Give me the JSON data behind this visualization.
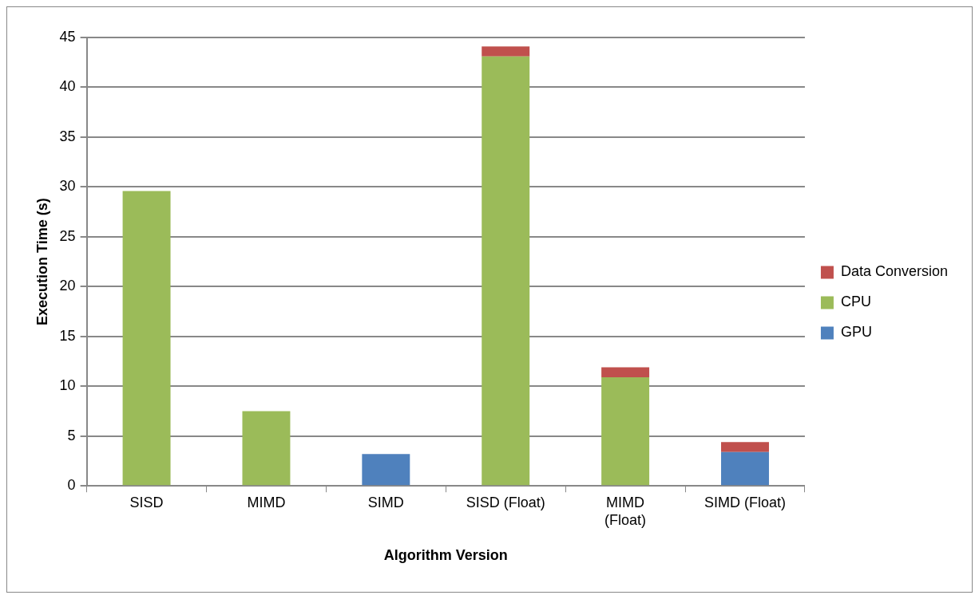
{
  "chart_data": {
    "type": "bar",
    "stacked": true,
    "xlabel": "Algorithm Version",
    "ylabel": "Execution Time (s)",
    "categories": [
      "SISD",
      "MIMD",
      "SIMD",
      "SISD (Float)",
      "MIMD (Float)",
      "SIMD (Float)"
    ],
    "series": [
      {
        "name": "GPU",
        "color": "#4f81bd",
        "values": [
          null,
          null,
          3.2,
          null,
          null,
          3.4
        ]
      },
      {
        "name": "CPU",
        "color": "#9bbb59",
        "values": [
          29.6,
          7.5,
          null,
          43.1,
          10.9,
          null
        ]
      },
      {
        "name": "Data Conversion",
        "color": "#c0504d",
        "values": [
          null,
          null,
          null,
          1.0,
          1.0,
          1.0
        ]
      }
    ],
    "ylim": [
      0,
      45
    ],
    "yticks": [
      0,
      5,
      10,
      15,
      20,
      25,
      30,
      35,
      40,
      45
    ],
    "grid": "y",
    "legend": "right"
  }
}
